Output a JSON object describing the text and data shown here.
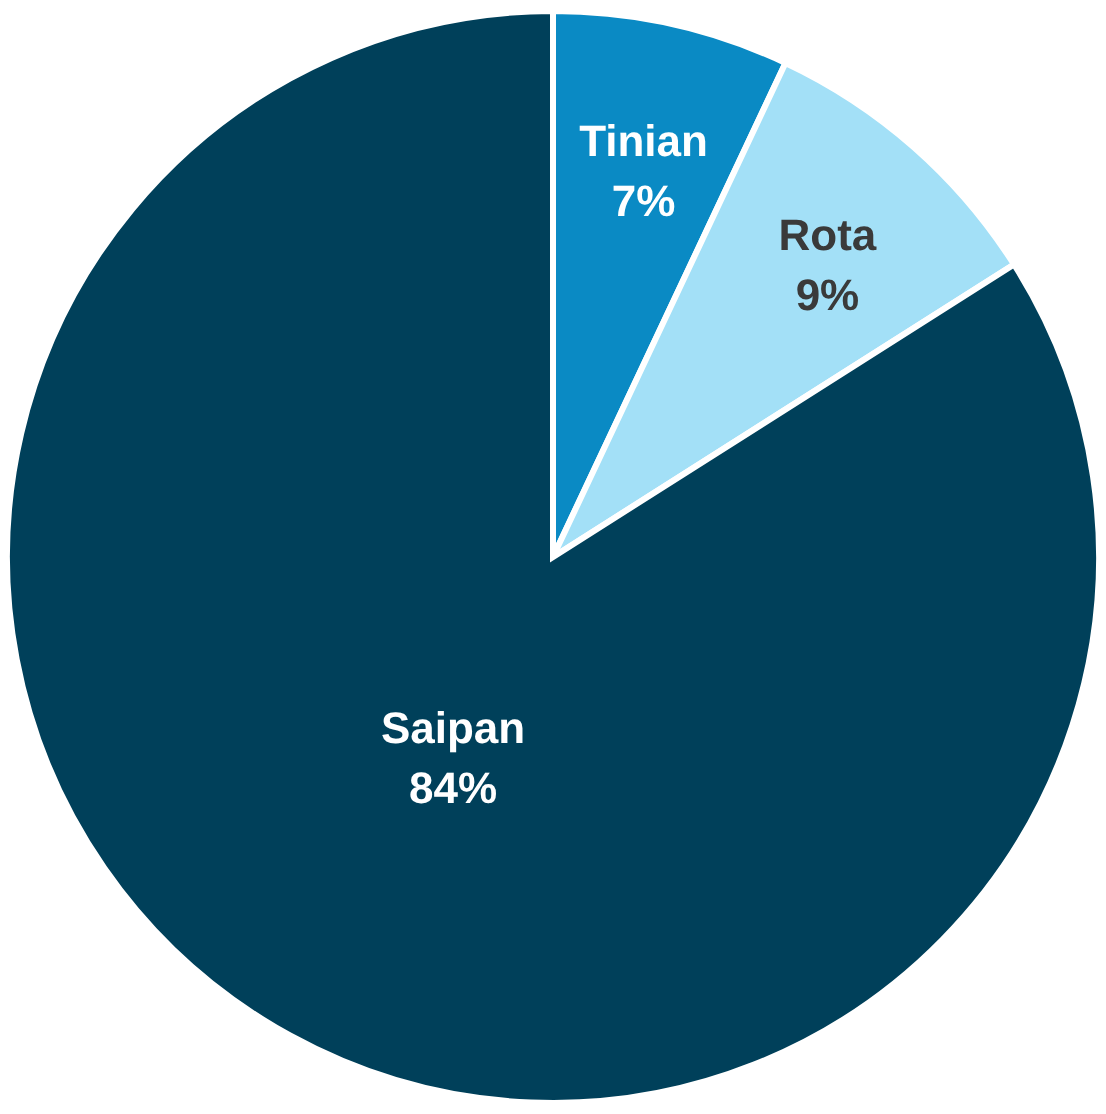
{
  "chart_data": {
    "type": "pie",
    "categories": [
      "Tinian",
      "Rota",
      "Saipan"
    ],
    "values": [
      7,
      9,
      84
    ],
    "colors": [
      "#0a8ac4",
      "#a3e0f7",
      "#00405a"
    ],
    "value_labels": [
      "7%",
      "9%",
      "84%"
    ]
  }
}
